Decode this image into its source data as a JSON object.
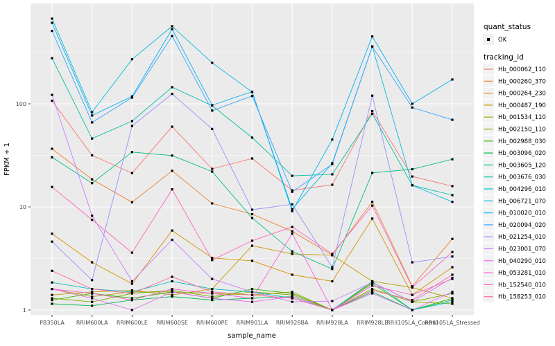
{
  "chart_data": {
    "type": "line",
    "title": "",
    "xlabel": "sample_name",
    "ylabel": "FPKM + 1",
    "y_scale": "log10",
    "y_ticks": [
      1,
      10,
      100
    ],
    "y_minor_ticks": [
      3.162,
      31.62,
      316.2
    ],
    "ylim": [
      1,
      1000
    ],
    "grid": "white-on-grey",
    "legend_position": "right",
    "categories": [
      "PB350LA",
      "RRIM600LA",
      "RRIM600LE",
      "RRIM600SE",
      "RRIM600PE",
      "RRIM901LA",
      "RRIM928BA",
      "RRIM928LA",
      "RRIM928LE",
      "RRII105LA_Control",
      "RRII105LA_Stressed"
    ],
    "series": [
      {
        "name": "Hb_000062_110",
        "color": "#F8766D",
        "values": [
          107,
          31.6,
          21.3,
          60,
          23.4,
          29.5,
          14.5,
          16.4,
          85,
          19.7,
          15.9
        ]
      },
      {
        "name": "Hb_000260_370",
        "color": "#EA8331",
        "values": [
          36.6,
          18.5,
          11.1,
          22.4,
          10.8,
          8.5,
          5.8,
          3.4,
          11.2,
          1.7,
          4.9
        ]
      },
      {
        "name": "Hb_000264_230",
        "color": "#D89000",
        "values": [
          5.5,
          2.9,
          1.8,
          5.9,
          3.2,
          3.0,
          2.2,
          1.9,
          7.7,
          1.4,
          2.6
        ]
      },
      {
        "name": "Hb_000487_190",
        "color": "#C09B00",
        "values": [
          1.4,
          1.5,
          1.55,
          1.4,
          1.6,
          4.2,
          3.5,
          3.4,
          1.9,
          1.65,
          1.3
        ]
      },
      {
        "name": "Hb_001534_110",
        "color": "#A3A500",
        "values": [
          1.6,
          1.35,
          1.5,
          1.5,
          1.45,
          1.4,
          1.5,
          1.0,
          1.85,
          1.2,
          1.15
        ]
      },
      {
        "name": "Hb_002150_110",
        "color": "#7CAE00",
        "values": [
          1.3,
          1.2,
          1.45,
          1.55,
          1.35,
          1.5,
          1.4,
          1.0,
          1.6,
          1.2,
          1.45
        ]
      },
      {
        "name": "Hb_002988_030",
        "color": "#39B600",
        "values": [
          1.25,
          1.45,
          1.3,
          1.5,
          1.3,
          1.6,
          1.45,
          1.0,
          1.8,
          1.0,
          1.3
        ]
      },
      {
        "name": "Hb_003096_020",
        "color": "#00BB4E",
        "values": [
          1.15,
          1.1,
          1.25,
          1.35,
          1.25,
          1.3,
          1.35,
          1.0,
          1.5,
          1.0,
          1.25
        ]
      },
      {
        "name": "Hb_003605_120",
        "color": "#00BF7D",
        "values": [
          30.3,
          17,
          34,
          31.5,
          22,
          7.8,
          3.7,
          2.5,
          21.4,
          23.2,
          29
        ]
      },
      {
        "name": "Hb_003676_030",
        "color": "#00C1A3",
        "values": [
          277,
          46,
          68,
          145,
          96,
          47,
          20,
          20.7,
          80,
          16.2,
          13
        ]
      },
      {
        "name": "Hb_004296_010",
        "color": "#00BFC4",
        "values": [
          1.85,
          1.6,
          1.5,
          1.9,
          1.6,
          1.5,
          1.3,
          1.0,
          1.9,
          1.0,
          1.2
        ]
      },
      {
        "name": "Hb_006721_070",
        "color": "#00BAE0",
        "values": [
          670,
          83,
          270,
          565,
          250,
          130,
          9.5,
          26.5,
          360,
          16.2,
          11.2
        ]
      },
      {
        "name": "Hb_010020_010",
        "color": "#00B0F6",
        "values": [
          610,
          77,
          118,
          530,
          97,
          131,
          9.1,
          45,
          450,
          100,
          172
        ]
      },
      {
        "name": "Hb_020094_020",
        "color": "#35A2FF",
        "values": [
          510,
          66,
          115,
          455,
          86,
          119,
          14,
          26,
          360,
          92,
          70
        ]
      },
      {
        "name": "Hb_021254_010",
        "color": "#9590FF",
        "values": [
          4.6,
          1.95,
          61,
          125,
          57,
          9.4,
          10.6,
          2.6,
          120,
          2.9,
          3.3
        ]
      },
      {
        "name": "Hb_023001_070",
        "color": "#C77CFF",
        "values": [
          122,
          8.2,
          1.9,
          4.8,
          2.0,
          1.5,
          1.2,
          1.22,
          1.85,
          1.2,
          2.05
        ]
      },
      {
        "name": "Hb_040290_010",
        "color": "#E76BF3",
        "values": [
          1.6,
          1.3,
          1.0,
          1.5,
          1.3,
          1.2,
          1.35,
          1.0,
          1.45,
          1.0,
          1.5
        ]
      },
      {
        "name": "Hb_053281_010",
        "color": "#FA62DB",
        "values": [
          1.6,
          1.45,
          1.25,
          1.6,
          1.45,
          1.3,
          5.5,
          1.0,
          1.72,
          1.4,
          2.0
        ]
      },
      {
        "name": "Hb_152540_010",
        "color": "#FF62BC",
        "values": [
          15.6,
          7.5,
          3.6,
          14.8,
          3.05,
          4.7,
          6.4,
          3.5,
          10.3,
          1.66,
          3.65
        ]
      },
      {
        "name": "Hb_158253_010",
        "color": "#FF6A98",
        "values": [
          2.4,
          1.6,
          1.45,
          2.1,
          1.5,
          1.4,
          1.3,
          1.0,
          1.55,
          1.25,
          2.2
        ]
      }
    ],
    "marker": {
      "shape": "small-black-square",
      "color": "#000000"
    }
  },
  "legend": {
    "quant_status_title": "quant_status",
    "quant_status_ok_label": "OK",
    "tracking_id_title": "tracking_id"
  },
  "colors": {
    "panel_bg": "#EBEBEB",
    "grid": "#FFFFFF",
    "axis_text": "#4D4D4D",
    "tick_mark": "#333333",
    "legend_key_bg": "#F2F2F2"
  }
}
